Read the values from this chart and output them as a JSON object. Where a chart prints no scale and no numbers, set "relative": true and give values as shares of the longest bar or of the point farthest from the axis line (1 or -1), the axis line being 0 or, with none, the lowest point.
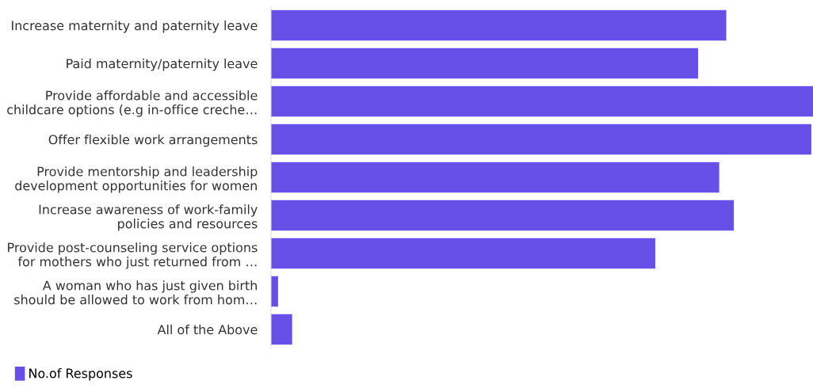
{
  "chart_data": {
    "type": "bar",
    "orientation": "horizontal",
    "relative": true,
    "legend": "bottom left",
    "categories": [
      "Increase maternity and paternity leave",
      "Paid maternity/paternity leave",
      "Provide affordable and accessible\nchildcare options (e.g in-office creche…",
      "Offer flexible work arrangements",
      "Provide mentorship and leadership\ndevelopment opportunities for women",
      "Increase awareness of work-family\npolicies and resources",
      "Provide post-counseling service options\nfor mothers who just returned from …",
      "A woman who has just given birth\nshould be allowed to work from hom…",
      "All of the Above"
    ],
    "series": [
      {
        "name": "No.of Responses",
        "color": "#6650e8",
        "values": [
          0.84,
          0.788,
          1,
          0.997,
          0.827,
          0.854,
          0.709,
          0.013,
          0.039
        ]
      }
    ]
  }
}
